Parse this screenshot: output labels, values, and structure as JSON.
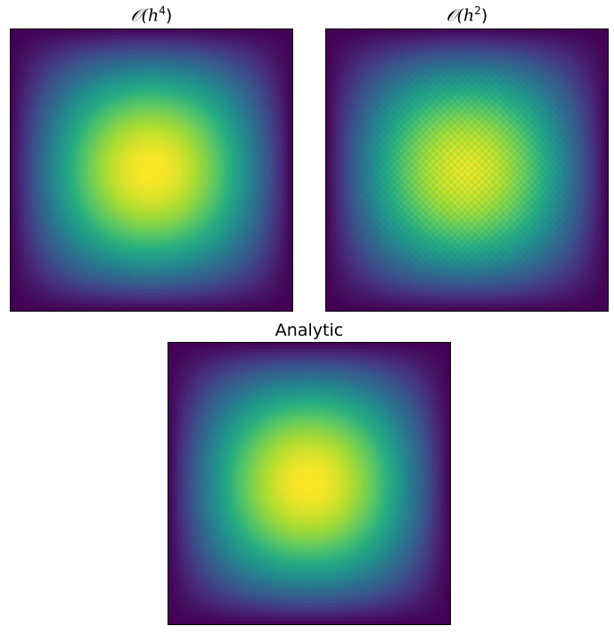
{
  "chart_data": [
    {
      "type": "heatmap",
      "title": "𝒪(h⁴)",
      "title_parts": {
        "prefix": "𝒪(",
        "var": "h",
        "exp": "4",
        "suffix": ")"
      },
      "colormap": "viridis",
      "grid_n": 80,
      "field": "sin(pi*x)*sin(pi*y)",
      "value_range": [
        0,
        1
      ],
      "checker_noise": 0.0,
      "x_ticks": [],
      "y_ticks": []
    },
    {
      "type": "heatmap",
      "title": "𝒪(h²)",
      "title_parts": {
        "prefix": "𝒪(",
        "var": "h",
        "exp": "2",
        "suffix": ")"
      },
      "colormap": "viridis",
      "grid_n": 80,
      "field": "sin(pi*x)*sin(pi*y)",
      "value_range": [
        0,
        1.05
      ],
      "checker_noise": 0.03,
      "x_ticks": [],
      "y_ticks": []
    },
    {
      "type": "heatmap",
      "title": "Analytic",
      "colormap": "viridis",
      "grid_n": 80,
      "field": "sin(pi*x)*sin(pi*y)",
      "value_range": [
        0,
        1
      ],
      "checker_noise": 0.0,
      "x_ticks": [],
      "y_ticks": []
    }
  ]
}
